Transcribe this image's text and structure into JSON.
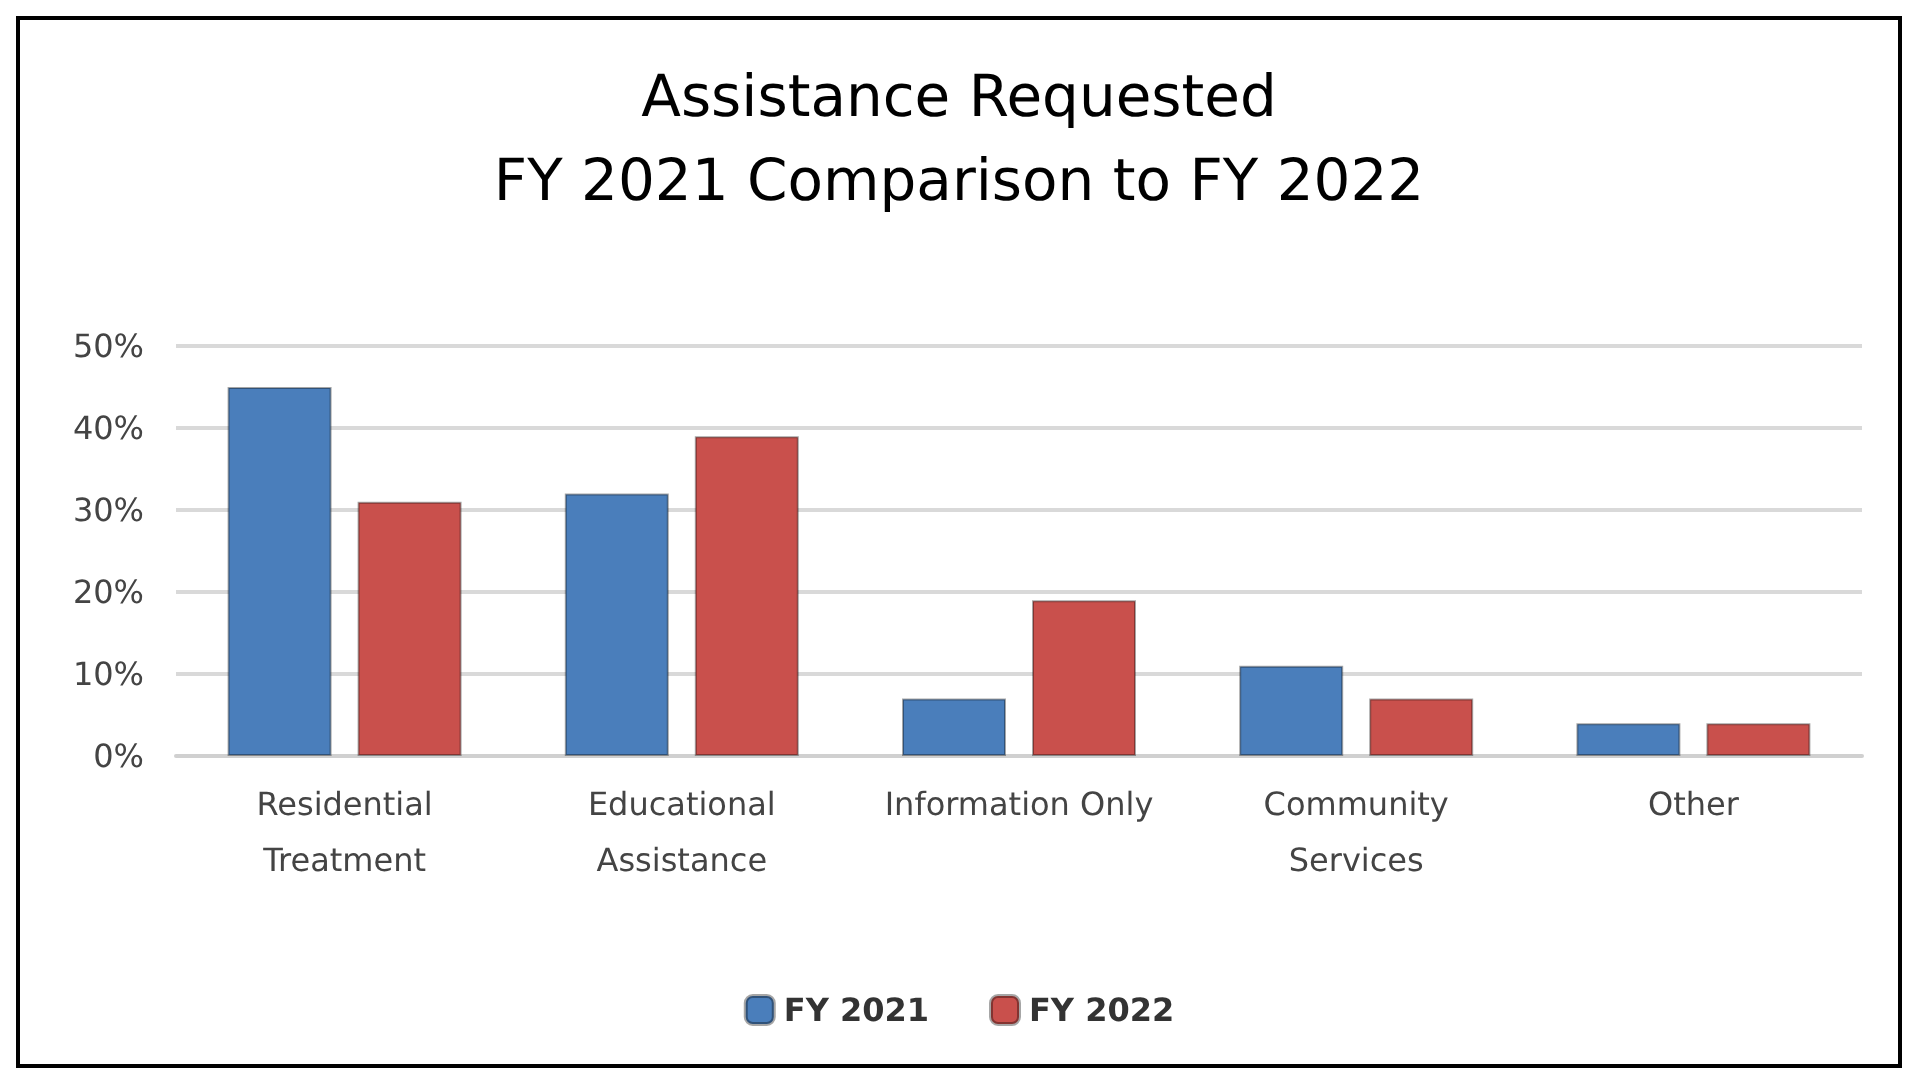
{
  "chart_data": {
    "type": "bar",
    "title": "Assistance Requested\nFY 2021 Comparison to FY 2022",
    "categories": [
      "Residential\nTreatment",
      "Educational\nAssistance",
      "Information Only",
      "Community\nServices",
      "Other"
    ],
    "series": [
      {
        "name": "FY 2021",
        "color": "#4a7ebb",
        "values": [
          45,
          32,
          7,
          11,
          4
        ]
      },
      {
        "name": "FY 2022",
        "color": "#c9504c",
        "values": [
          31,
          39,
          19,
          7,
          4
        ]
      }
    ],
    "ylim": [
      0,
      50
    ],
    "yticks": [
      {
        "value": 0,
        "label": "0%"
      },
      {
        "value": 10,
        "label": "10%"
      },
      {
        "value": 20,
        "label": "20%"
      },
      {
        "value": 30,
        "label": "30%"
      },
      {
        "value": 40,
        "label": "40%"
      },
      {
        "value": 50,
        "label": "50%"
      }
    ],
    "grid": "y",
    "legend": "bottom"
  }
}
